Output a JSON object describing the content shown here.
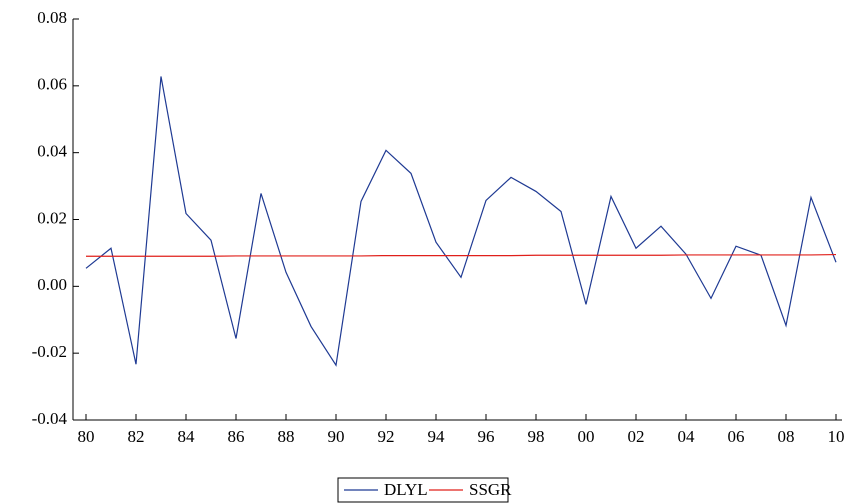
{
  "chart_data": {
    "type": "line",
    "categories": [
      "80",
      null,
      "82",
      null,
      "84",
      null,
      "86",
      null,
      "88",
      null,
      "90",
      null,
      "92",
      null,
      "94",
      null,
      "96",
      null,
      "98",
      null,
      "00",
      null,
      "02",
      null,
      "04",
      null,
      "06",
      null,
      "08",
      null,
      "10"
    ],
    "series": [
      {
        "name": "DLYL",
        "color": "#1f3a93",
        "values": [
          0.0054,
          0.0114,
          -0.0233,
          0.0628,
          0.0218,
          0.0138,
          -0.0156,
          0.0278,
          0.0042,
          -0.012,
          -0.0236,
          0.0254,
          0.0407,
          0.0338,
          0.0132,
          0.0027,
          0.0257,
          0.0326,
          0.0284,
          0.0224,
          -0.0054,
          0.0269,
          0.0114,
          0.018,
          0.0096,
          -0.0036,
          0.012,
          0.0093,
          -0.0117,
          0.0266,
          0.0072
        ]
      },
      {
        "name": "SSGR",
        "color": "#e0201b",
        "values": [
          0.009,
          0.009,
          0.009,
          0.009,
          0.009,
          0.009,
          0.0091,
          0.0091,
          0.0091,
          0.0091,
          0.0091,
          0.0091,
          0.0092,
          0.0092,
          0.0092,
          0.0092,
          0.0092,
          0.0092,
          0.0093,
          0.0093,
          0.0093,
          0.0093,
          0.0093,
          0.0093,
          0.0094,
          0.0094,
          0.0094,
          0.0094,
          0.0094,
          0.0094,
          0.0095
        ]
      }
    ],
    "ylim": [
      -0.04,
      0.08
    ],
    "yticks": [
      {
        "value": -0.04,
        "label": "-0.04"
      },
      {
        "value": -0.02,
        "label": "-0.02"
      },
      {
        "value": 0,
        "label": "0.00"
      },
      {
        "value": 0.02,
        "label": "0.02"
      },
      {
        "value": 0.04,
        "label": "0.04"
      },
      {
        "value": 0.06,
        "label": "0.06"
      },
      {
        "value": 0.08,
        "label": "0.08"
      }
    ],
    "grid": false,
    "legend": "bottom"
  }
}
